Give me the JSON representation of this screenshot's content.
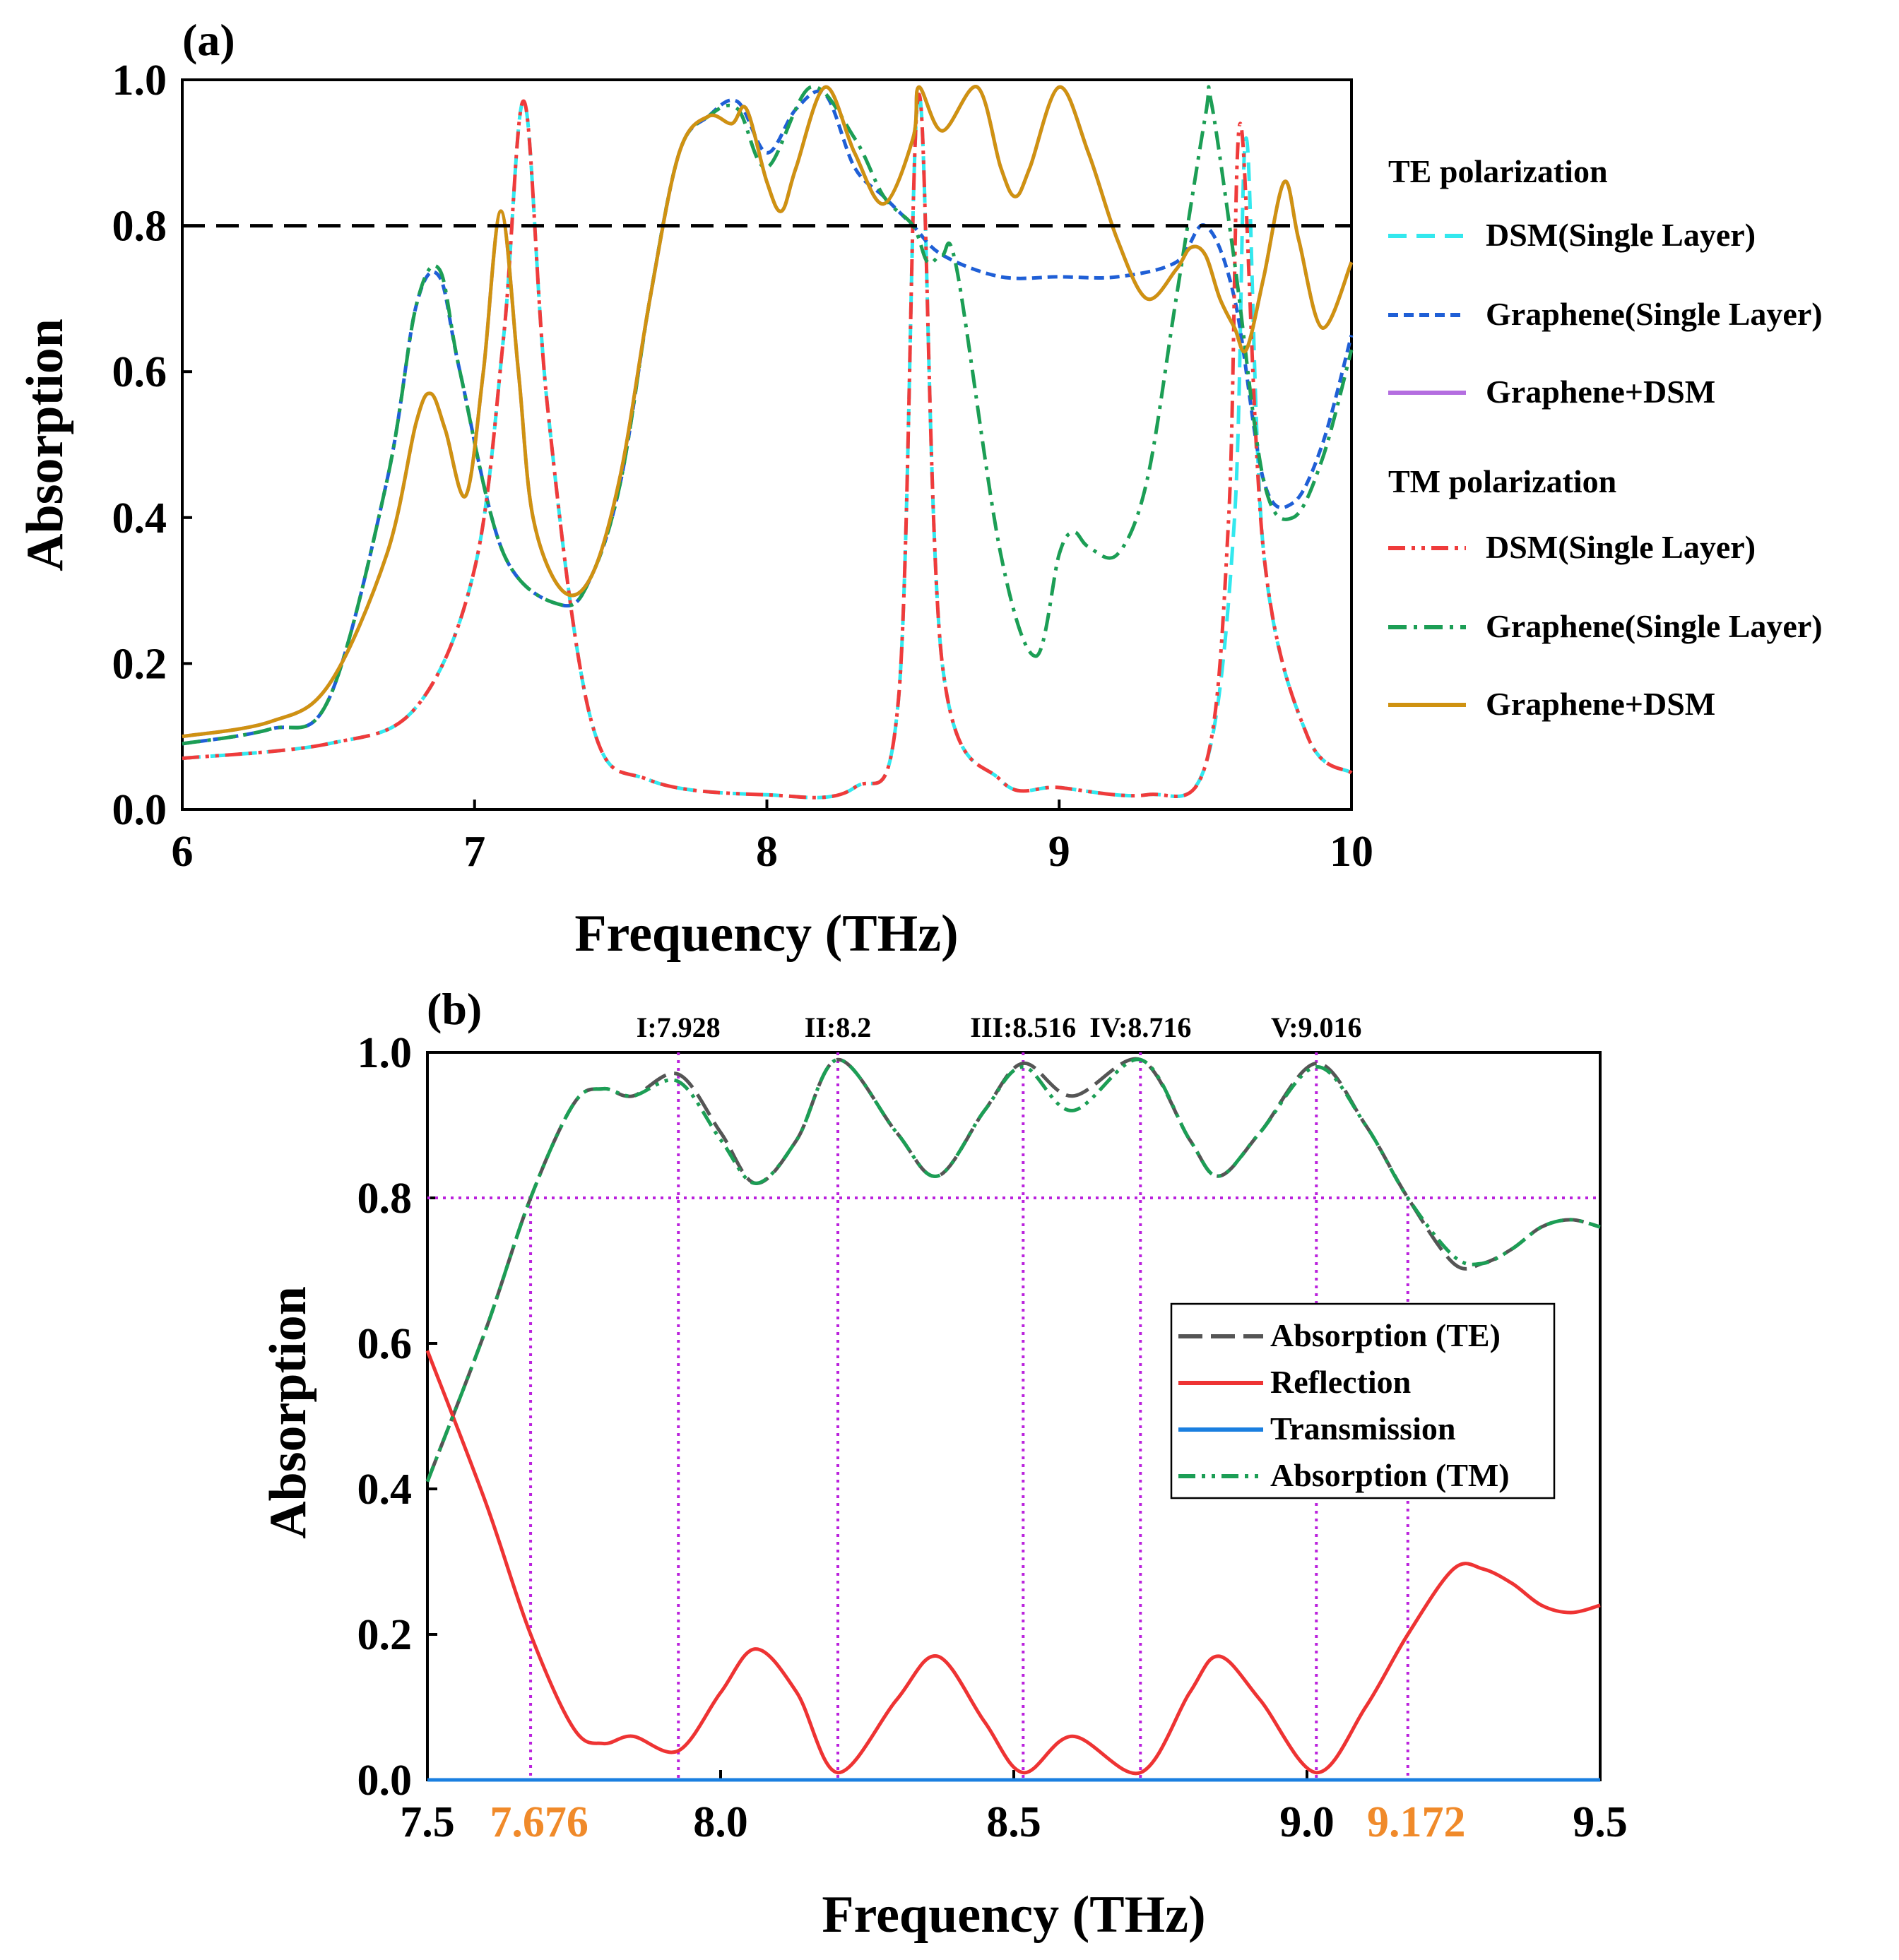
{
  "colors": {
    "te_dsm": "#33e8ee",
    "te_graphene": "#1f5fd6",
    "te_combo": "#b46ee0",
    "tm_dsm": "#ef3b3b",
    "tm_graphene": "#1c9e55",
    "tm_combo": "#cf9211",
    "abs_te": "#555555",
    "reflection": "#ee3333",
    "transmission": "#1a7fe0",
    "abs_tm": "#1c9e55",
    "marker": "#bb22dd",
    "threshold_a": "#000000",
    "orange_label": "#f08a2a"
  },
  "chart_data": [
    {
      "panel": "(a)",
      "type": "line",
      "xlabel": "Frequency (THz)",
      "ylabel": "Absorption",
      "xlim": [
        6,
        10
      ],
      "ylim": [
        0,
        1.0
      ],
      "xticks": [
        "6",
        "7",
        "8",
        "9",
        "10"
      ],
      "yticks": [
        "0.0",
        "0.2",
        "0.4",
        "0.6",
        "0.8",
        "1.0"
      ],
      "threshold": 0.8,
      "legend": {
        "group_te": "TE polarization",
        "group_tm": "TM polarization"
      },
      "series": [
        {
          "id": "te_dsm",
          "name": "DSM(Single Layer)",
          "group": "TE",
          "style": "dash",
          "x": [
            6.0,
            6.5,
            6.8,
            7.0,
            7.1,
            7.17,
            7.25,
            7.4,
            7.6,
            8.0,
            8.3,
            8.45,
            8.52,
            8.6,
            8.8,
            9.0,
            9.3,
            9.5,
            9.6,
            9.64,
            9.7,
            9.85,
            10.0
          ],
          "y": [
            0.07,
            0.09,
            0.14,
            0.33,
            0.65,
            0.97,
            0.55,
            0.12,
            0.04,
            0.02,
            0.03,
            0.15,
            0.98,
            0.2,
            0.04,
            0.03,
            0.02,
            0.06,
            0.4,
            0.92,
            0.35,
            0.1,
            0.05
          ]
        },
        {
          "id": "te_graphene",
          "name": "Graphene(Single Layer)",
          "group": "TE",
          "style": "shortdash",
          "x": [
            6.0,
            6.3,
            6.5,
            6.7,
            6.8,
            6.88,
            6.95,
            7.1,
            7.3,
            7.4,
            7.5,
            7.6,
            7.7,
            7.8,
            7.9,
            8.0,
            8.1,
            8.2,
            8.3,
            8.4,
            8.5,
            8.6,
            8.8,
            9.0,
            9.2,
            9.4,
            9.5,
            9.6,
            9.7,
            9.8,
            9.9,
            10.0
          ],
          "y": [
            0.09,
            0.11,
            0.15,
            0.45,
            0.69,
            0.73,
            0.6,
            0.35,
            0.28,
            0.32,
            0.45,
            0.7,
            0.9,
            0.95,
            0.97,
            0.9,
            0.96,
            0.98,
            0.88,
            0.84,
            0.8,
            0.76,
            0.73,
            0.73,
            0.73,
            0.75,
            0.8,
            0.7,
            0.45,
            0.42,
            0.5,
            0.65
          ]
        },
        {
          "id": "te_combo",
          "name": "Graphene+DSM",
          "group": "TE",
          "style": "solid",
          "x": [
            6.0,
            6.3,
            6.5,
            6.7,
            6.8,
            6.85,
            6.9,
            6.97,
            7.03,
            7.09,
            7.15,
            7.2,
            7.3,
            7.4,
            7.5,
            7.6,
            7.7,
            7.8,
            7.88,
            7.93,
            8.0,
            8.05,
            8.1,
            8.2,
            8.3,
            8.4,
            8.5,
            8.52,
            8.6,
            8.72,
            8.8,
            8.85,
            8.9,
            9.0,
            9.1,
            9.2,
            9.3,
            9.4,
            9.45,
            9.5,
            9.55,
            9.6,
            9.64,
            9.7,
            9.77,
            9.82,
            9.9,
            10.0
          ],
          "y": [
            0.1,
            0.12,
            0.17,
            0.35,
            0.53,
            0.57,
            0.52,
            0.43,
            0.6,
            0.82,
            0.6,
            0.4,
            0.3,
            0.32,
            0.46,
            0.7,
            0.9,
            0.95,
            0.94,
            0.96,
            0.86,
            0.82,
            0.88,
            0.99,
            0.9,
            0.83,
            0.92,
            0.99,
            0.93,
            0.99,
            0.88,
            0.84,
            0.88,
            0.99,
            0.9,
            0.78,
            0.7,
            0.74,
            0.77,
            0.76,
            0.7,
            0.66,
            0.63,
            0.73,
            0.86,
            0.78,
            0.66,
            0.75
          ]
        },
        {
          "id": "tm_dsm",
          "name": "DSM(Single Layer)",
          "group": "TM",
          "style": "dashdotdot",
          "x": [
            6.0,
            6.5,
            6.8,
            7.0,
            7.1,
            7.17,
            7.25,
            7.4,
            7.6,
            8.0,
            8.3,
            8.45,
            8.52,
            8.6,
            8.8,
            9.0,
            9.3,
            9.5,
            9.58,
            9.62,
            9.7,
            9.85,
            10.0
          ],
          "y": [
            0.07,
            0.09,
            0.14,
            0.33,
            0.65,
            0.97,
            0.55,
            0.12,
            0.04,
            0.02,
            0.03,
            0.15,
            0.98,
            0.2,
            0.04,
            0.03,
            0.02,
            0.06,
            0.4,
            0.94,
            0.35,
            0.1,
            0.05
          ]
        },
        {
          "id": "tm_graphene",
          "name": "Graphene(Single Layer)",
          "group": "TM",
          "style": "dashdot",
          "x": [
            6.0,
            6.3,
            6.5,
            6.7,
            6.8,
            6.88,
            6.95,
            7.1,
            7.3,
            7.4,
            7.5,
            7.6,
            7.7,
            7.8,
            7.9,
            8.0,
            8.15,
            8.3,
            8.4,
            8.5,
            8.55,
            8.6,
            8.65,
            8.8,
            8.92,
            9.0,
            9.05,
            9.1,
            9.2,
            9.3,
            9.4,
            9.5,
            9.52,
            9.6,
            9.7,
            9.8,
            9.9,
            10.0
          ],
          "y": [
            0.09,
            0.11,
            0.15,
            0.45,
            0.69,
            0.74,
            0.6,
            0.35,
            0.28,
            0.32,
            0.45,
            0.7,
            0.9,
            0.95,
            0.96,
            0.88,
            0.99,
            0.92,
            0.84,
            0.8,
            0.75,
            0.76,
            0.74,
            0.35,
            0.21,
            0.35,
            0.38,
            0.36,
            0.35,
            0.45,
            0.7,
            0.95,
            0.97,
            0.75,
            0.45,
            0.4,
            0.48,
            0.63
          ]
        },
        {
          "id": "tm_combo",
          "name": "Graphene+DSM",
          "group": "TM",
          "style": "solid",
          "x": [
            6.0,
            6.3,
            6.5,
            6.7,
            6.8,
            6.85,
            6.9,
            6.97,
            7.03,
            7.09,
            7.15,
            7.2,
            7.3,
            7.4,
            7.5,
            7.6,
            7.7,
            7.8,
            7.88,
            7.93,
            8.0,
            8.05,
            8.1,
            8.2,
            8.3,
            8.4,
            8.5,
            8.52,
            8.6,
            8.72,
            8.8,
            8.85,
            8.9,
            9.0,
            9.1,
            9.2,
            9.3,
            9.4,
            9.45,
            9.5,
            9.55,
            9.6,
            9.64,
            9.7,
            9.77,
            9.82,
            9.9,
            10.0
          ],
          "y": [
            0.1,
            0.12,
            0.17,
            0.35,
            0.53,
            0.57,
            0.52,
            0.43,
            0.6,
            0.82,
            0.6,
            0.4,
            0.3,
            0.32,
            0.46,
            0.7,
            0.9,
            0.95,
            0.94,
            0.96,
            0.86,
            0.82,
            0.88,
            0.99,
            0.9,
            0.83,
            0.92,
            0.99,
            0.93,
            0.99,
            0.88,
            0.84,
            0.88,
            0.99,
            0.9,
            0.78,
            0.7,
            0.74,
            0.77,
            0.76,
            0.7,
            0.66,
            0.63,
            0.73,
            0.86,
            0.78,
            0.66,
            0.75
          ]
        }
      ]
    },
    {
      "panel": "(b)",
      "type": "line",
      "xlabel": "Frequency (THz)",
      "ylabel": "Absorption",
      "xlim": [
        7.5,
        9.5
      ],
      "ylim": [
        0,
        1.0
      ],
      "xticks": [
        "7.5",
        "8.0",
        "8.5",
        "9.0",
        "9.5"
      ],
      "yticks": [
        "0.0",
        "0.2",
        "0.4",
        "0.6",
        "0.8",
        "1.0"
      ],
      "threshold": 0.8,
      "markers": [
        {
          "label": "I:7.928",
          "x": 7.928
        },
        {
          "label": "II:8.2",
          "x": 8.2
        },
        {
          "label": "III:8.516",
          "x": 8.516
        },
        {
          "label": "IV:8.716",
          "x": 8.716
        },
        {
          "label": "V:9.016",
          "x": 9.016
        }
      ],
      "band_edges": [
        {
          "label": "7.676",
          "x": 7.676
        },
        {
          "label": "9.172",
          "x": 9.172
        }
      ],
      "series": [
        {
          "id": "abs_te",
          "name": "Absorption (TE)",
          "style": "dashlong",
          "x": [
            7.5,
            7.6,
            7.676,
            7.75,
            7.8,
            7.85,
            7.928,
            8.0,
            8.06,
            8.13,
            8.2,
            8.3,
            8.37,
            8.45,
            8.516,
            8.6,
            8.716,
            8.8,
            8.85,
            8.92,
            9.016,
            9.1,
            9.172,
            9.25,
            9.3,
            9.35,
            9.4,
            9.45,
            9.5
          ],
          "y": [
            0.41,
            0.62,
            0.8,
            0.93,
            0.95,
            0.94,
            0.97,
            0.89,
            0.82,
            0.88,
            0.99,
            0.89,
            0.83,
            0.92,
            0.985,
            0.94,
            0.99,
            0.88,
            0.83,
            0.89,
            0.985,
            0.9,
            0.8,
            0.71,
            0.71,
            0.73,
            0.76,
            0.77,
            0.76
          ]
        },
        {
          "id": "reflection",
          "name": "Reflection",
          "style": "solid",
          "x": [
            7.5,
            7.6,
            7.676,
            7.75,
            7.8,
            7.85,
            7.928,
            8.0,
            8.06,
            8.13,
            8.2,
            8.3,
            8.37,
            8.45,
            8.516,
            8.6,
            8.716,
            8.8,
            8.85,
            8.92,
            9.016,
            9.1,
            9.172,
            9.25,
            9.3,
            9.35,
            9.4,
            9.45,
            9.5
          ],
          "y": [
            0.59,
            0.38,
            0.2,
            0.07,
            0.05,
            0.06,
            0.04,
            0.12,
            0.18,
            0.12,
            0.01,
            0.11,
            0.17,
            0.08,
            0.01,
            0.06,
            0.01,
            0.12,
            0.17,
            0.11,
            0.01,
            0.1,
            0.2,
            0.29,
            0.29,
            0.27,
            0.24,
            0.23,
            0.24
          ]
        },
        {
          "id": "transmission",
          "name": "Transmission",
          "style": "solid",
          "x": [
            7.5,
            9.5
          ],
          "y": [
            0.0,
            0.0
          ]
        },
        {
          "id": "abs_tm",
          "name": "Absorption (TM)",
          "style": "dashdotdot",
          "x": [
            7.5,
            7.6,
            7.676,
            7.75,
            7.8,
            7.85,
            7.928,
            8.0,
            8.06,
            8.13,
            8.2,
            8.3,
            8.37,
            8.45,
            8.516,
            8.6,
            8.716,
            8.8,
            8.85,
            8.92,
            9.016,
            9.1,
            9.172,
            9.25,
            9.3,
            9.35,
            9.4,
            9.45,
            9.5
          ],
          "y": [
            0.41,
            0.62,
            0.8,
            0.93,
            0.95,
            0.94,
            0.96,
            0.88,
            0.82,
            0.88,
            0.99,
            0.89,
            0.83,
            0.92,
            0.98,
            0.92,
            0.99,
            0.88,
            0.83,
            0.89,
            0.98,
            0.9,
            0.8,
            0.72,
            0.71,
            0.73,
            0.76,
            0.77,
            0.76
          ]
        }
      ]
    }
  ]
}
